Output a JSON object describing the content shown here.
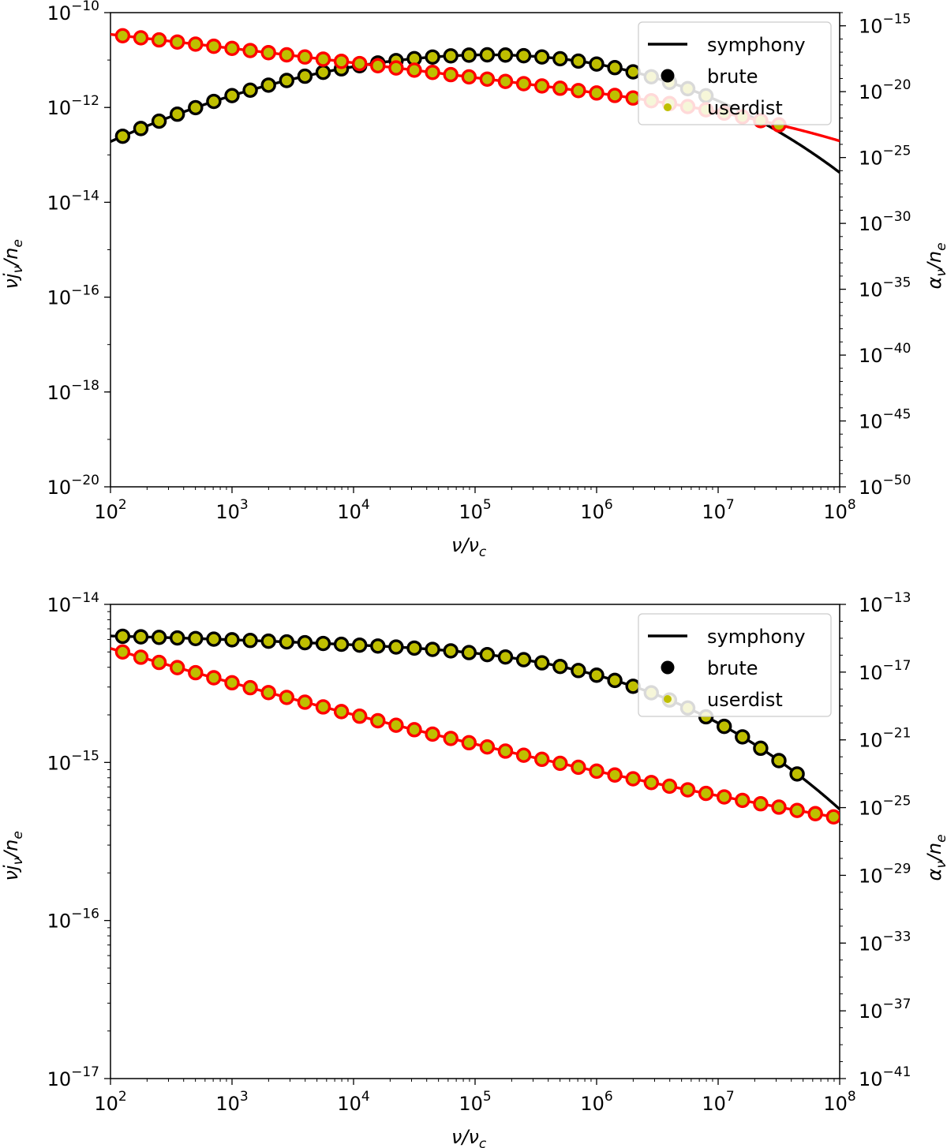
{
  "chart_data": [
    {
      "type": "line",
      "panel": "top",
      "xscale": "log",
      "yscale": "log",
      "y2scale": "log",
      "xlabel": "ν/ν_c",
      "ylabel": "νj_ν/n_e",
      "y2label": "α_ν/n_e",
      "xlim": [
        100,
        100000000
      ],
      "ylim": [
        1e-20,
        1e-10
      ],
      "y2lim": [
        1e-50,
        1e-14
      ],
      "x_ticks": [
        {
          "value": 100,
          "base": "10",
          "exp": "2"
        },
        {
          "value": 1000,
          "base": "10",
          "exp": "3"
        },
        {
          "value": 10000,
          "base": "10",
          "exp": "4"
        },
        {
          "value": 100000,
          "base": "10",
          "exp": "5"
        },
        {
          "value": 1000000,
          "base": "10",
          "exp": "6"
        },
        {
          "value": 10000000,
          "base": "10",
          "exp": "7"
        },
        {
          "value": 100000000,
          "base": "10",
          "exp": "8"
        }
      ],
      "y_ticks": [
        {
          "value": 1e-20,
          "base": "10",
          "exp": "−20"
        },
        {
          "value": 1e-18,
          "base": "10",
          "exp": "−18"
        },
        {
          "value": 1e-16,
          "base": "10",
          "exp": "−16"
        },
        {
          "value": 1e-14,
          "base": "10",
          "exp": "−14"
        },
        {
          "value": 1e-12,
          "base": "10",
          "exp": "−12"
        },
        {
          "value": 1e-10,
          "base": "10",
          "exp": "−10"
        }
      ],
      "y2_ticks": [
        {
          "value": 1e-50,
          "base": "10",
          "exp": "−50"
        },
        {
          "value": 1e-45,
          "base": "10",
          "exp": "−45"
        },
        {
          "value": 1e-40,
          "base": "10",
          "exp": "−40"
        },
        {
          "value": 1e-35,
          "base": "10",
          "exp": "−35"
        },
        {
          "value": 1e-30,
          "base": "10",
          "exp": "−30"
        },
        {
          "value": 1e-25,
          "base": "10",
          "exp": "−25"
        },
        {
          "value": 1e-20,
          "base": "10",
          "exp": "−20"
        },
        {
          "value": 1e-15,
          "base": "10",
          "exp": "−15"
        }
      ],
      "legend": {
        "placement": "top-right",
        "entries": [
          "symphony",
          "brute",
          "userdist"
        ]
      },
      "emission": {
        "axis": "left",
        "color": "#000000",
        "exponent_expr": "-12.72 + 1.15*u - 0.18*u*u - 0.025*Math.pow(Math.max(0,u-2.5),3)",
        "note": "u = log10(ν/ν_c) - 2",
        "sample_logx": [
          2.1,
          2.25,
          2.4,
          2.55,
          2.7,
          2.85,
          3.0,
          3.15,
          3.3,
          3.45,
          3.6,
          3.75,
          3.9,
          4.05,
          4.2,
          4.35,
          4.5,
          4.65,
          4.8,
          4.95,
          5.1,
          5.25,
          5.4,
          5.55,
          5.7,
          5.85,
          6.0,
          6.15,
          6.3,
          6.45,
          6.6,
          6.75,
          6.9
        ]
      },
      "absorption": {
        "axis": "right",
        "color": "#ff0000",
        "exponent_expr": "-15.65 - 1.05*u - 0.015*u*u - 0.08*Math.pow(Math.max(0,u-3.5),3)",
        "note": "u = log10(ν/ν_c) - 2",
        "sample_logx": [
          2.1,
          2.25,
          2.4,
          2.55,
          2.7,
          2.85,
          3.0,
          3.15,
          3.3,
          3.45,
          3.6,
          3.75,
          3.9,
          4.05,
          4.2,
          4.35,
          4.5,
          4.65,
          4.8,
          4.95,
          5.1,
          5.25,
          5.4,
          5.55,
          5.7,
          5.85,
          6.0,
          6.15,
          6.3,
          6.45,
          6.6,
          6.75,
          6.9,
          7.05,
          7.2,
          7.35,
          7.5
        ]
      }
    },
    {
      "type": "line",
      "panel": "bottom",
      "xscale": "log",
      "yscale": "log",
      "y2scale": "log",
      "xlabel": "ν/ν_c",
      "ylabel": "νj_ν/n_e",
      "y2label": "α_ν/n_e",
      "xlim": [
        100,
        100000000
      ],
      "ylim": [
        1e-17,
        1e-14
      ],
      "y2lim": [
        1e-41,
        1e-13
      ],
      "x_ticks": [
        {
          "value": 100,
          "base": "10",
          "exp": "2"
        },
        {
          "value": 1000,
          "base": "10",
          "exp": "3"
        },
        {
          "value": 10000,
          "base": "10",
          "exp": "4"
        },
        {
          "value": 100000,
          "base": "10",
          "exp": "5"
        },
        {
          "value": 1000000,
          "base": "10",
          "exp": "6"
        },
        {
          "value": 10000000,
          "base": "10",
          "exp": "7"
        },
        {
          "value": 100000000,
          "base": "10",
          "exp": "8"
        }
      ],
      "y_ticks": [
        {
          "value": 1e-17,
          "base": "10",
          "exp": "−17"
        },
        {
          "value": 1e-16,
          "base": "10",
          "exp": "−16"
        },
        {
          "value": 1e-15,
          "base": "10",
          "exp": "−15"
        },
        {
          "value": 1e-14,
          "base": "10",
          "exp": "−14"
        }
      ],
      "y2_ticks": [
        {
          "value": 1e-41,
          "base": "10",
          "exp": "−41"
        },
        {
          "value": 1e-37,
          "base": "10",
          "exp": "−37"
        },
        {
          "value": 1e-33,
          "base": "10",
          "exp": "−33"
        },
        {
          "value": 1e-29,
          "base": "10",
          "exp": "−29"
        },
        {
          "value": 1e-25,
          "base": "10",
          "exp": "−25"
        },
        {
          "value": 1e-21,
          "base": "10",
          "exp": "−21"
        },
        {
          "value": 1e-17,
          "base": "10",
          "exp": "−17"
        },
        {
          "value": 1e-13,
          "base": "10",
          "exp": "−13"
        }
      ],
      "legend": {
        "placement": "top-right",
        "entries": [
          "symphony",
          "brute",
          "userdist"
        ]
      },
      "emission": {
        "axis": "left",
        "color": "#000000",
        "exponent_expr": "-14.2 - 0.02*u - 0.004*u*u - 0.013*Math.pow(Math.max(0,u-2),3)",
        "note": "u = log10(ν/ν_c) - 2",
        "sample_logx": [
          2.1,
          2.25,
          2.4,
          2.55,
          2.7,
          2.85,
          3.0,
          3.15,
          3.3,
          3.45,
          3.6,
          3.75,
          3.9,
          4.05,
          4.2,
          4.35,
          4.5,
          4.65,
          4.8,
          4.95,
          5.1,
          5.25,
          5.4,
          5.55,
          5.7,
          5.85,
          6.0,
          6.15,
          6.3,
          6.45,
          6.6,
          6.75,
          6.9,
          7.05,
          7.2,
          7.35,
          7.5,
          7.65
        ]
      },
      "absorption": {
        "axis": "right",
        "color": "#ff0000",
        "exponent_expr": "-15.6 - 2.1*u + 0.072*u*u",
        "note": "u = log10(ν/ν_c) - 2",
        "sample_logx": [
          2.1,
          2.25,
          2.4,
          2.55,
          2.7,
          2.85,
          3.0,
          3.15,
          3.3,
          3.45,
          3.6,
          3.75,
          3.9,
          4.05,
          4.2,
          4.35,
          4.5,
          4.65,
          4.8,
          4.95,
          5.1,
          5.25,
          5.4,
          5.55,
          5.7,
          5.85,
          6.0,
          6.15,
          6.3,
          6.45,
          6.6,
          6.75,
          6.9,
          7.05,
          7.2,
          7.35,
          7.5,
          7.65,
          7.8,
          7.95
        ]
      }
    }
  ]
}
